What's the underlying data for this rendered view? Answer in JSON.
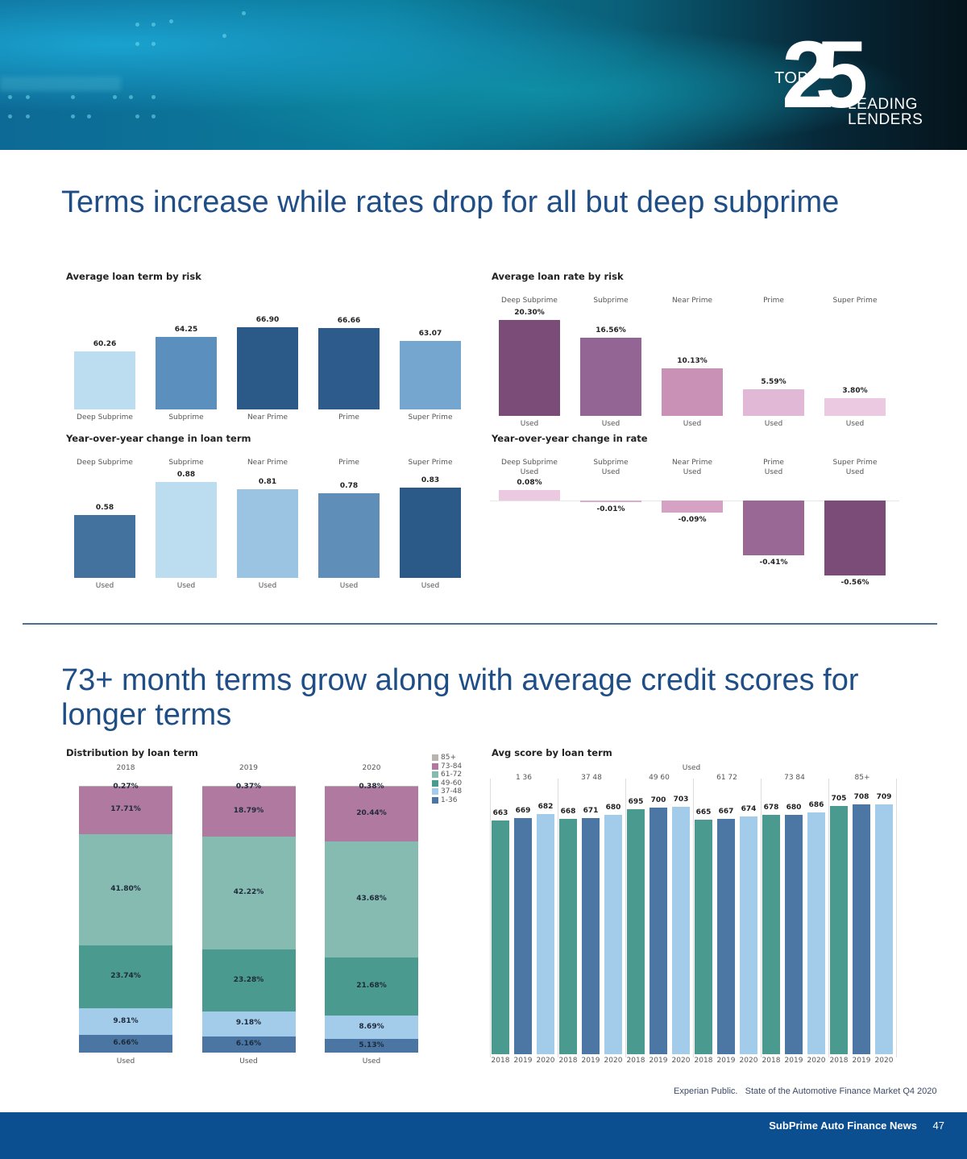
{
  "header": {
    "logo": {
      "top": "TOP",
      "number": "25",
      "line1": "LEADING",
      "line2": "LENDERS"
    }
  },
  "section1": {
    "title": "Terms increase while rates drop for all but deep subprime"
  },
  "section2": {
    "title_line1": "73+ month terms grow along with average credit scores for",
    "title_line2": "longer terms"
  },
  "colors": {
    "title_blue": "#1f4e87",
    "footer_blue": "#0c4f91"
  },
  "chart_data": [
    {
      "id": "avg_term",
      "type": "bar",
      "title": "Average loan term by risk",
      "categories": [
        "Deep Subprime",
        "Subprime",
        "Near Prime",
        "Prime",
        "Super Prime"
      ],
      "values": [
        60.26,
        64.25,
        66.9,
        66.66,
        63.07
      ],
      "labels": [
        "60.26",
        "64.25",
        "66.90",
        "66.66",
        "63.07"
      ],
      "colors": [
        "#bcdcef",
        "#5b8fbe",
        "#2b5a89",
        "#2d5b8b",
        "#75a6cf"
      ],
      "ylim": [
        50,
        68
      ]
    },
    {
      "id": "avg_rate",
      "type": "bar",
      "title": "Average loan rate by risk",
      "categories": [
        "Deep Subprime",
        "Subprime",
        "Near Prime",
        "Prime",
        "Super Prime"
      ],
      "sublabel": "Used",
      "values": [
        20.3,
        16.56,
        10.13,
        5.59,
        3.8
      ],
      "labels": [
        "20.30%",
        "16.56%",
        "10.13%",
        "5.59%",
        "3.80%"
      ],
      "colors": [
        "#7b4c78",
        "#936594",
        "#c891b5",
        "#e2b8d7",
        "#ebc9e1"
      ],
      "ylim": [
        0,
        21
      ]
    },
    {
      "id": "yoy_term",
      "type": "bar",
      "title": "Year-over-year change in loan term",
      "categories": [
        "Deep Subprime",
        "Subprime",
        "Near Prime",
        "Prime",
        "Super Prime"
      ],
      "sublabel": "Used",
      "values": [
        0.58,
        0.88,
        0.81,
        0.78,
        0.83
      ],
      "labels": [
        "0.58",
        "0.88",
        "0.81",
        "0.78",
        "0.83"
      ],
      "colors": [
        "#44729f",
        "#bcdcef",
        "#9ac4e2",
        "#5f8fb8",
        "#2b5a89"
      ],
      "ylim": [
        0,
        0.9
      ]
    },
    {
      "id": "yoy_rate",
      "type": "bar",
      "title": "Year-over-year change in rate",
      "categories": [
        "Deep Subprime",
        "Subprime",
        "Near Prime",
        "Prime",
        "Super Prime"
      ],
      "sublabel": "Used",
      "values": [
        0.08,
        -0.01,
        -0.09,
        -0.41,
        -0.56
      ],
      "labels": [
        "0.08%",
        "-0.01%",
        "-0.09%",
        "-0.41%",
        "-0.56%"
      ],
      "colors": [
        "#ebc9e1",
        "#d9aecb",
        "#d5a2c4",
        "#996895",
        "#7b4c78"
      ],
      "ylim": [
        -0.6,
        0.1
      ]
    },
    {
      "id": "distribution",
      "type": "bar",
      "stacked": true,
      "title": "Distribution by loan term",
      "categories": [
        "2018",
        "2019",
        "2020"
      ],
      "sublabel": "Used",
      "legend": {
        "position": "right"
      },
      "series": [
        {
          "name": "1-36",
          "color": "#4b76a3",
          "values": [
            6.66,
            6.16,
            5.13
          ]
        },
        {
          "name": "37-48",
          "color": "#a3cbea",
          "values": [
            9.81,
            9.18,
            8.69
          ]
        },
        {
          "name": "49-60",
          "color": "#4a9a8f",
          "values": [
            23.74,
            23.28,
            21.68
          ]
        },
        {
          "name": "61-72",
          "color": "#86bbb2",
          "values": [
            41.8,
            42.22,
            43.68
          ]
        },
        {
          "name": "73-84",
          "color": "#b07aa0",
          "values": [
            17.71,
            18.79,
            20.44
          ]
        },
        {
          "name": "85+",
          "color": "#b8b4ae",
          "values": [
            0.27,
            0.37,
            0.38
          ]
        }
      ],
      "legend_order": [
        "85+",
        "73-84",
        "61-72",
        "49-60",
        "37-48",
        "1-36"
      ],
      "ylim": [
        0,
        100
      ]
    },
    {
      "id": "avg_score",
      "type": "bar",
      "title": "Avg score by loan term",
      "header": "Used",
      "groups": [
        "1 36",
        "37 48",
        "49 60",
        "61 72",
        "73 84",
        "85+"
      ],
      "x": [
        "2018",
        "2019",
        "2020"
      ],
      "year_colors": [
        "#4a9a8f",
        "#4c77a4",
        "#a3cbea"
      ],
      "values": [
        [
          663,
          669,
          682
        ],
        [
          668,
          671,
          680
        ],
        [
          695,
          700,
          703
        ],
        [
          665,
          667,
          674
        ],
        [
          678,
          680,
          686
        ],
        [
          705,
          708,
          709
        ]
      ],
      "ylim": [
        0,
        709
      ]
    }
  ],
  "footer": {
    "source": "Experian Public.   State of the Automotive Finance Market Q4 2020",
    "brand": "SubPrime Auto Finance News",
    "page": "47"
  }
}
